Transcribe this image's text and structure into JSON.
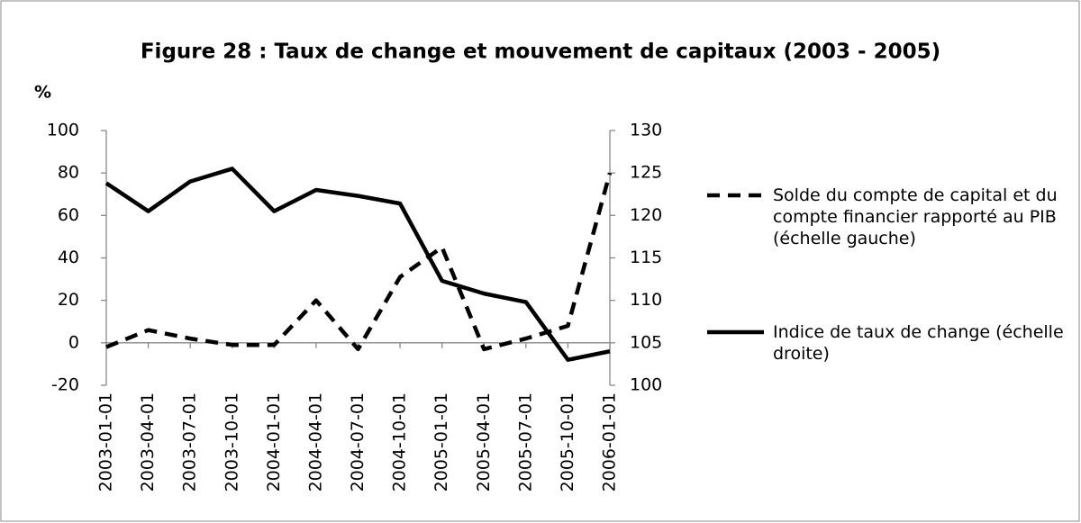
{
  "chart_data": {
    "type": "line",
    "title": "Figure 28 : Taux de change et mouvement de capitaux (2003 - 2005)",
    "y_label": "%",
    "categories": [
      "2003-01-01",
      "2003-04-01",
      "2003-07-01",
      "2003-10-01",
      "2004-01-01",
      "2004-04-01",
      "2004-07-01",
      "2004-10-01",
      "2005-01-01",
      "2005-04-01",
      "2005-07-01",
      "2005-10-01",
      "2006-01-01"
    ],
    "series": [
      {
        "name": "Solde du compte de capital et du compte financier rapporté au PIB (échelle gauche)",
        "color": "#000000",
        "dash": true,
        "values": [
          -2,
          6,
          2,
          -1,
          -1,
          20,
          -3,
          31,
          45,
          -3,
          2,
          8,
          80
        ]
      },
      {
        "name": "Indice de taux de change (échelle droite)",
        "color": "#000000",
        "dash": false,
        "axis": "y2",
        "values": [
          123.8,
          120.5,
          124,
          125.5,
          120.5,
          123,
          122.3,
          121.4,
          112.3,
          110.8,
          109.8,
          103,
          104
        ]
      }
    ],
    "ylim": [
      -20,
      100
    ],
    "yticks": [
      -20,
      0,
      20,
      40,
      60,
      80,
      100
    ],
    "y2lim": [
      100,
      130
    ],
    "y2ticks": [
      100,
      105,
      110,
      115,
      120,
      125,
      130
    ],
    "grid": false,
    "legend": "right"
  }
}
